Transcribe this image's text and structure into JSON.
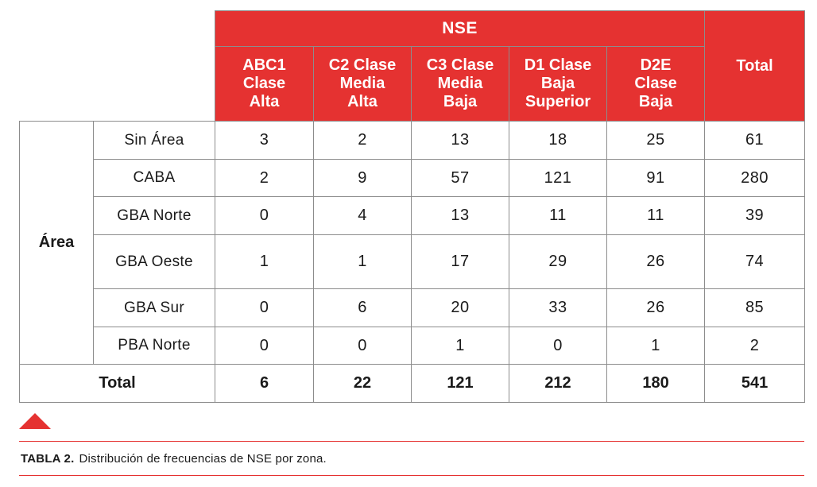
{
  "table": {
    "group_header": "NSE",
    "total_header": "Total",
    "columns": [
      [
        "ABC1",
        "Clase",
        "Alta"
      ],
      [
        "C2 Clase",
        "Media",
        "Alta"
      ],
      [
        "C3 Clase",
        "Media",
        "Baja"
      ],
      [
        "D1 Clase",
        "Baja",
        "Superior"
      ],
      [
        "D2E",
        "Clase",
        "Baja"
      ]
    ],
    "area_label": "Área",
    "rows": [
      {
        "label": "Sin Área",
        "values": [
          "3",
          "2",
          "13",
          "18",
          "25"
        ],
        "total": "61"
      },
      {
        "label": "CABA",
        "values": [
          "2",
          "9",
          "57",
          "121",
          "91"
        ],
        "total": "280"
      },
      {
        "label": "GBA Norte",
        "values": [
          "0",
          "4",
          "13",
          "11",
          "11"
        ],
        "total": "39"
      },
      {
        "label": "GBA Oeste",
        "values": [
          "1",
          "1",
          "17",
          "29",
          "26"
        ],
        "total": "74"
      },
      {
        "label": "GBA Sur",
        "values": [
          "0",
          "6",
          "20",
          "33",
          "26"
        ],
        "total": "85"
      },
      {
        "label": "PBA Norte",
        "values": [
          "0",
          "0",
          "1",
          "0",
          "1"
        ],
        "total": "2"
      }
    ],
    "total_row": {
      "label": "Total",
      "values": [
        "6",
        "22",
        "121",
        "212",
        "180"
      ],
      "total": "541"
    }
  },
  "caption": {
    "label": "TABLA 2.",
    "text": "Distribución de frecuencias de NSE por zona."
  },
  "colors": {
    "accent": "#e53231",
    "border": "#8c8c8c"
  }
}
